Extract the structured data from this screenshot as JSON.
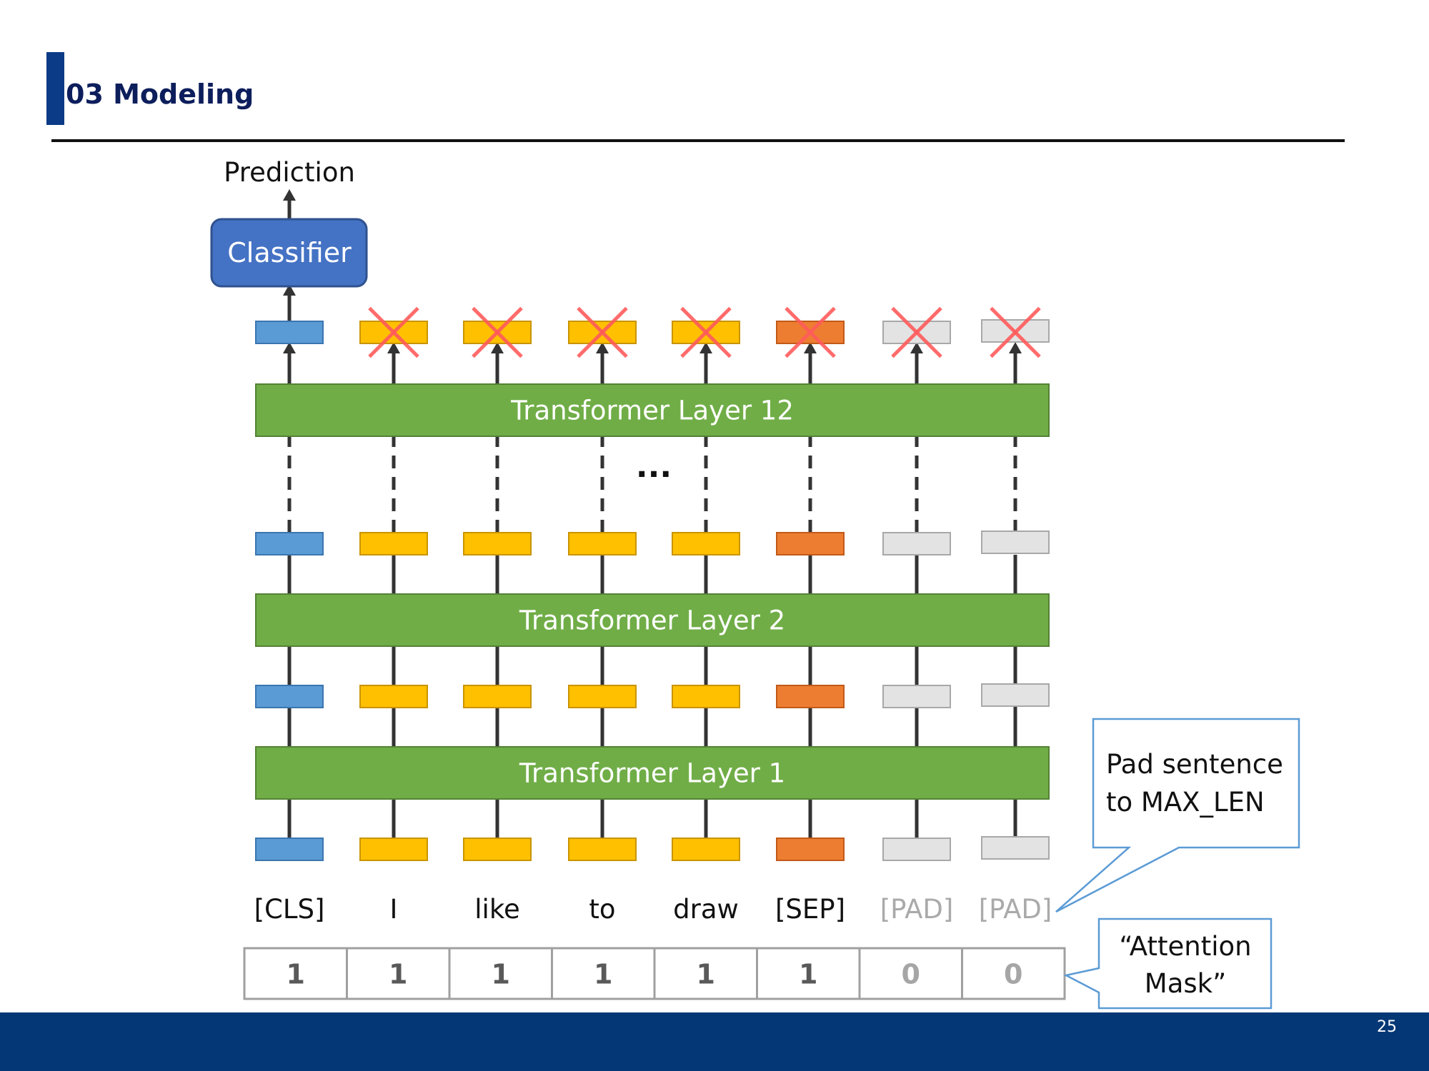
{
  "slide": {
    "title": "03 Modeling",
    "page_number": "25"
  },
  "diagram": {
    "output_label": "Prediction",
    "classifier_label": "Classifier",
    "layers": [
      "Transformer Layer 12",
      "Transformer Layer 2",
      "Transformer Layer 1"
    ],
    "ellipsis": "...",
    "tokens": [
      {
        "text": "[CLS]",
        "kind": "cls",
        "mask": "1"
      },
      {
        "text": "I",
        "kind": "word",
        "mask": "1"
      },
      {
        "text": "like",
        "kind": "word",
        "mask": "1"
      },
      {
        "text": "to",
        "kind": "word",
        "mask": "1"
      },
      {
        "text": "draw",
        "kind": "word",
        "mask": "1"
      },
      {
        "text": "[SEP]",
        "kind": "sep",
        "mask": "1"
      },
      {
        "text": "[PAD]",
        "kind": "pad",
        "mask": "0"
      },
      {
        "text": "[PAD]",
        "kind": "pad",
        "mask": "0"
      }
    ],
    "callout_pad": [
      "Pad sentence",
      "to MAX_LEN"
    ],
    "callout_mask": [
      "“Attention",
      "Mask”"
    ]
  },
  "colors": {
    "cls": "#5b9bd5",
    "word": "#ffc000",
    "sep": "#ed7d31",
    "pad": "#e3e3e3",
    "layer": "#70ad47",
    "classifier": "#4472c4",
    "cross": "#ff5b5b",
    "callout_border": "#5b9bd5",
    "footer": "#033775",
    "title": "#0d1e5c"
  }
}
